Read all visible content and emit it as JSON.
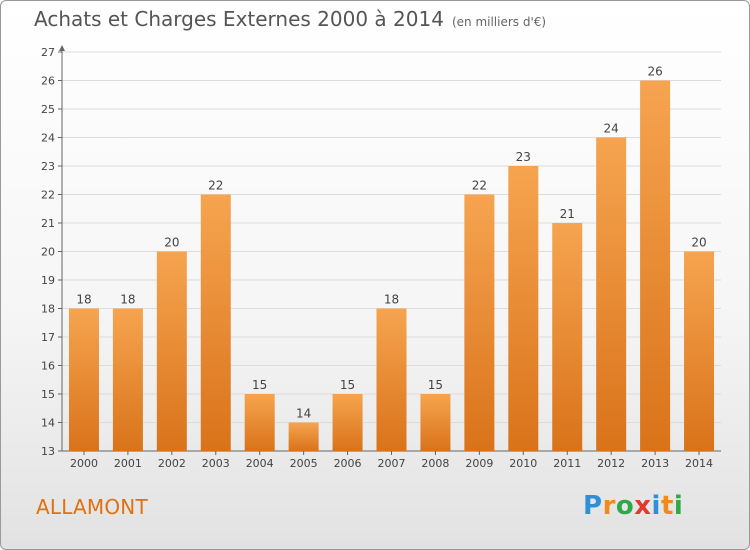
{
  "title": "Achats et Charges Externes 2000 à 2014",
  "unit_label": "(en milliers d'€)",
  "commune": "ALLAMONT",
  "logo": {
    "letters": [
      "P",
      "r",
      "o",
      "x",
      "i",
      "t",
      "i"
    ],
    "colors": [
      "#2f8fd8",
      "#f08a1c",
      "#2fa84a",
      "#e03a2f",
      "#2f8fd8",
      "#f08a1c",
      "#2fa84a"
    ]
  },
  "colors": {
    "bar_top": "#f6a450",
    "bar_bottom": "#d9731a",
    "accent": "#e07010"
  },
  "chart_data": {
    "type": "bar",
    "categories": [
      "2000",
      "2001",
      "2002",
      "2003",
      "2004",
      "2005",
      "2006",
      "2007",
      "2008",
      "2009",
      "2010",
      "2011",
      "2012",
      "2013",
      "2014"
    ],
    "values": [
      18,
      18,
      20,
      22,
      15,
      14,
      15,
      18,
      15,
      22,
      23,
      21,
      24,
      26,
      20
    ],
    "title": "Achats et Charges Externes 2000 à 2014",
    "ylim": [
      13,
      27
    ],
    "yticks": [
      13,
      14,
      15,
      16,
      17,
      18,
      19,
      20,
      21,
      22,
      23,
      24,
      25,
      26,
      27
    ],
    "grid": true
  }
}
